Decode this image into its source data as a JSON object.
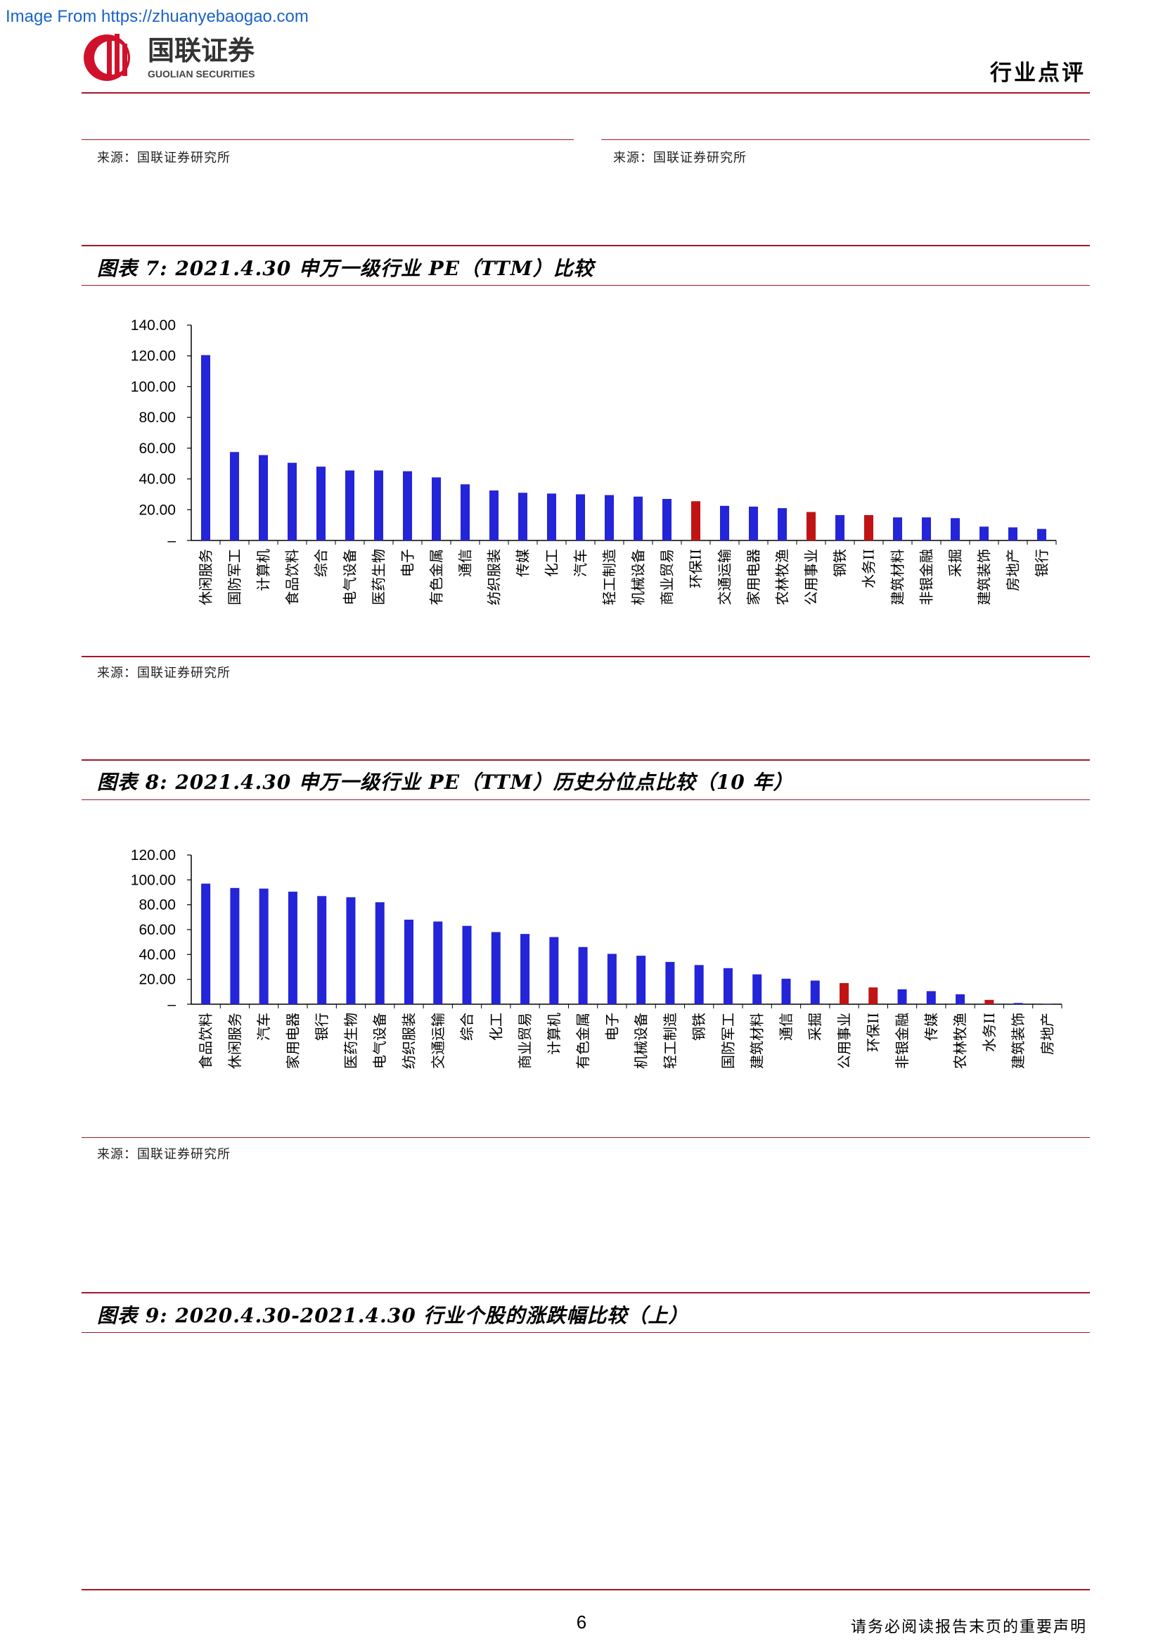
{
  "watermark": "Image From https://zhuanyebaogao.com",
  "header": {
    "logo_cn": "国联证券",
    "logo_en": "GUOLIAN SECURITIES",
    "tag": "行业点评"
  },
  "colors": {
    "primary_bar": "#2424d8",
    "highlight_bar": "#c01414",
    "rule": "#a5162a"
  },
  "top_sources": {
    "left": "来源：国联证券研究所",
    "right": "来源：国联证券研究所"
  },
  "fig7": {
    "title": "图表 7:  2021.4.30 申万一级行业 PE（TTM）比较",
    "source": "来源：国联证券研究所"
  },
  "fig8": {
    "title": "图表 8:  2021.4.30 申万一级行业 PE（TTM）历史分位点比较（10 年）",
    "source": "来源：国联证券研究所"
  },
  "fig9": {
    "title": "图表 9:  2020.4.30-2021.4.30 行业个股的涨跌幅比较（上）"
  },
  "footer": {
    "page": "6",
    "note": "请务必阅读报告末页的重要声明"
  },
  "chart_data": [
    {
      "type": "bar",
      "ylim": [
        0,
        140
      ],
      "yticks": [
        "–",
        "20.00",
        "40.00",
        "60.00",
        "80.00",
        "100.00",
        "120.00",
        "140.00"
      ],
      "categories": [
        "休闲服务",
        "国防军工",
        "计算机",
        "食品饮料",
        "综合",
        "电气设备",
        "医药生物",
        "电子",
        "有色金属",
        "通信",
        "纺织服装",
        "传媒",
        "化工",
        "汽车",
        "轻工制造",
        "机械设备",
        "商业贸易",
        "环保II",
        "交通运输",
        "家用电器",
        "农林牧渔",
        "公用事业",
        "钢铁",
        "水务II",
        "建筑材料",
        "非银金融",
        "采掘",
        "建筑装饰",
        "房地产",
        "银行"
      ],
      "values": [
        120.5,
        57.5,
        55.5,
        50.5,
        48,
        45.5,
        45.5,
        45,
        41,
        36.5,
        32.5,
        31,
        30.5,
        30,
        29.5,
        28.5,
        27,
        25.5,
        22.5,
        22,
        21,
        18.5,
        16.5,
        16.5,
        15,
        15,
        14.5,
        9,
        8.5,
        7.5
      ],
      "highlight": [
        "环保II",
        "公用事业",
        "水务II"
      ]
    },
    {
      "type": "bar",
      "ylim": [
        0,
        120
      ],
      "yticks": [
        "–",
        "20.00",
        "40.00",
        "60.00",
        "80.00",
        "100.00",
        "120.00"
      ],
      "categories": [
        "食品饮料",
        "休闲服务",
        "汽车",
        "家用电器",
        "银行",
        "医药生物",
        "电气设备",
        "纺织服装",
        "交通运输",
        "综合",
        "化工",
        "商业贸易",
        "计算机",
        "有色金属",
        "电子",
        "机械设备",
        "轻工制造",
        "钢铁",
        "国防军工",
        "建筑材料",
        "通信",
        "采掘",
        "公用事业",
        "环保II",
        "非银金融",
        "传媒",
        "农林牧渔",
        "水务II",
        "建筑装饰",
        "房地产"
      ],
      "values": [
        97,
        93.5,
        93,
        90.5,
        87,
        86,
        82,
        68,
        66.5,
        63,
        58,
        56.5,
        54,
        46,
        40.5,
        39,
        34,
        31.5,
        29,
        24,
        20.5,
        19,
        17,
        13.5,
        12,
        10.5,
        8,
        3.5,
        1,
        0.3
      ],
      "highlight": [
        "公用事业",
        "环保II",
        "水务II"
      ]
    }
  ]
}
